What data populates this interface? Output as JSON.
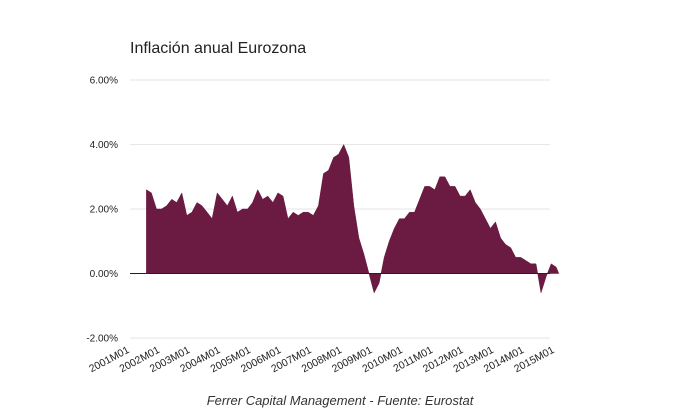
{
  "chart_data": {
    "type": "area",
    "title": "Inflación anual Eurozona",
    "caption": "Ferrer Capital Management - Fuente: Eurostat",
    "xlabel": "",
    "ylabel": "",
    "ylim": [
      -2,
      6
    ],
    "yticks": [
      "6.00%",
      "4.00%",
      "2.00%",
      "0.00%",
      "-2.00%"
    ],
    "ytick_values": [
      6,
      4,
      2,
      0,
      -2
    ],
    "xticks": [
      "2001M01",
      "2002M01",
      "2003M01",
      "2004M01",
      "2005M01",
      "2006M01",
      "2007M01",
      "2008M01",
      "2009M01",
      "2010M01",
      "2011M01",
      "2012M01",
      "2013M01",
      "2014M01",
      "2015M01"
    ],
    "x_start": "2002M01",
    "x_end": "2015M08",
    "grid": true,
    "legend": "none",
    "series": [
      {
        "color": "#6b1a42",
        "points": [
          [
            "2002M01",
            2.6
          ],
          [
            "2002M03",
            2.5
          ],
          [
            "2002M05",
            2.0
          ],
          [
            "2002M07",
            2.0
          ],
          [
            "2002M09",
            2.1
          ],
          [
            "2002M11",
            2.3
          ],
          [
            "2003M01",
            2.2
          ],
          [
            "2003M03",
            2.5
          ],
          [
            "2003M05",
            1.8
          ],
          [
            "2003M07",
            1.9
          ],
          [
            "2003M09",
            2.2
          ],
          [
            "2003M11",
            2.1
          ],
          [
            "2004M01",
            1.9
          ],
          [
            "2004M03",
            1.7
          ],
          [
            "2004M05",
            2.5
          ],
          [
            "2004M07",
            2.3
          ],
          [
            "2004M09",
            2.1
          ],
          [
            "2004M11",
            2.4
          ],
          [
            "2005M01",
            1.9
          ],
          [
            "2005M03",
            2.0
          ],
          [
            "2005M05",
            2.0
          ],
          [
            "2005M07",
            2.2
          ],
          [
            "2005M09",
            2.6
          ],
          [
            "2005M11",
            2.3
          ],
          [
            "2006M01",
            2.4
          ],
          [
            "2006M03",
            2.2
          ],
          [
            "2006M05",
            2.5
          ],
          [
            "2006M07",
            2.4
          ],
          [
            "2006M09",
            1.7
          ],
          [
            "2006M11",
            1.9
          ],
          [
            "2007M01",
            1.8
          ],
          [
            "2007M03",
            1.9
          ],
          [
            "2007M05",
            1.9
          ],
          [
            "2007M07",
            1.8
          ],
          [
            "2007M09",
            2.1
          ],
          [
            "2007M11",
            3.1
          ],
          [
            "2008M01",
            3.2
          ],
          [
            "2008M03",
            3.6
          ],
          [
            "2008M05",
            3.7
          ],
          [
            "2008M07",
            4.0
          ],
          [
            "2008M09",
            3.6
          ],
          [
            "2008M11",
            2.1
          ],
          [
            "2009M01",
            1.1
          ],
          [
            "2009M03",
            0.6
          ],
          [
            "2009M05",
            0.0
          ],
          [
            "2009M07",
            -0.6
          ],
          [
            "2009M09",
            -0.3
          ],
          [
            "2009M11",
            0.5
          ],
          [
            "2010M01",
            1.0
          ],
          [
            "2010M03",
            1.4
          ],
          [
            "2010M05",
            1.7
          ],
          [
            "2010M07",
            1.7
          ],
          [
            "2010M09",
            1.9
          ],
          [
            "2010M11",
            1.9
          ],
          [
            "2011M01",
            2.3
          ],
          [
            "2011M03",
            2.7
          ],
          [
            "2011M05",
            2.7
          ],
          [
            "2011M07",
            2.6
          ],
          [
            "2011M09",
            3.0
          ],
          [
            "2011M11",
            3.0
          ],
          [
            "2012M01",
            2.7
          ],
          [
            "2012M03",
            2.7
          ],
          [
            "2012M05",
            2.4
          ],
          [
            "2012M07",
            2.4
          ],
          [
            "2012M09",
            2.6
          ],
          [
            "2012M11",
            2.2
          ],
          [
            "2013M01",
            2.0
          ],
          [
            "2013M03",
            1.7
          ],
          [
            "2013M05",
            1.4
          ],
          [
            "2013M07",
            1.6
          ],
          [
            "2013M09",
            1.1
          ],
          [
            "2013M11",
            0.9
          ],
          [
            "2014M01",
            0.8
          ],
          [
            "2014M03",
            0.5
          ],
          [
            "2014M05",
            0.5
          ],
          [
            "2014M07",
            0.4
          ],
          [
            "2014M09",
            0.3
          ],
          [
            "2014M11",
            0.3
          ],
          [
            "2015M01",
            -0.6
          ],
          [
            "2015M03",
            -0.1
          ],
          [
            "2015M05",
            0.3
          ],
          [
            "2015M07",
            0.2
          ],
          [
            "2015M08",
            0.0
          ]
        ]
      }
    ]
  }
}
